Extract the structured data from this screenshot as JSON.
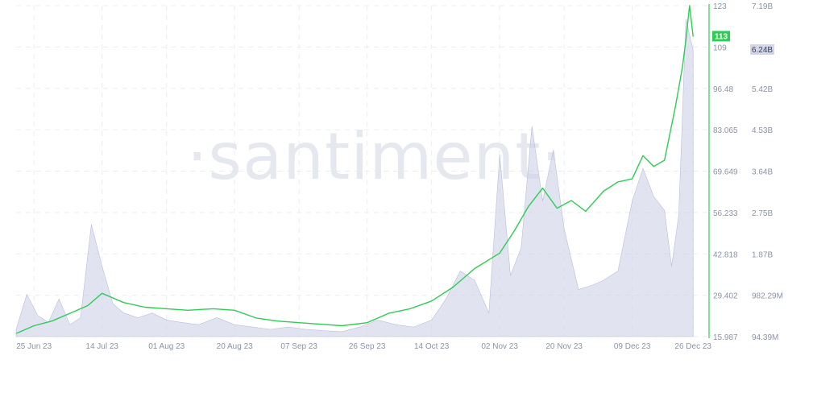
{
  "chart_data": {
    "type": "line",
    "title": "",
    "watermark": "·santiment·",
    "x_tick_labels": [
      "25 Jun 23",
      "14 Jul 23",
      "01 Aug 23",
      "20 Aug 23",
      "07 Sep 23",
      "26 Sep 23",
      "14 Oct 23",
      "02 Nov 23",
      "20 Nov 23",
      "09 Dec 23",
      "26 Dec 23"
    ],
    "price_axis": {
      "ticks": [
        "123",
        "109",
        "96.48",
        "83.065",
        "69.649",
        "56.233",
        "42.818",
        "29.402",
        "15.987"
      ],
      "range": [
        15.987,
        123
      ],
      "color": "#2ecc55",
      "current_value_label": "113"
    },
    "volume_axis": {
      "ticks": [
        "7.19B",
        "6.24B",
        "5.42B",
        "4.53B",
        "3.64B",
        "2.75B",
        "1.87B",
        "982.29M",
        "94.39M"
      ],
      "range_billions": [
        0.094,
        7.19
      ],
      "color": "#c9cde3",
      "current_value_label": "6.24B"
    },
    "series": [
      {
        "name": "",
        "kind": "line",
        "axis": "price",
        "x": [
          "2023-06-20",
          "2023-06-25",
          "2023-06-30",
          "2023-07-05",
          "2023-07-10",
          "2023-07-14",
          "2023-07-20",
          "2023-07-26",
          "2023-08-01",
          "2023-08-07",
          "2023-08-14",
          "2023-08-20",
          "2023-08-26",
          "2023-09-01",
          "2023-09-07",
          "2023-09-13",
          "2023-09-19",
          "2023-09-26",
          "2023-10-02",
          "2023-10-08",
          "2023-10-14",
          "2023-10-20",
          "2023-10-26",
          "2023-11-02",
          "2023-11-06",
          "2023-11-10",
          "2023-11-14",
          "2023-11-18",
          "2023-11-22",
          "2023-11-26",
          "2023-12-01",
          "2023-12-05",
          "2023-12-09",
          "2023-12-12",
          "2023-12-15",
          "2023-12-18",
          "2023-12-21",
          "2023-12-23",
          "2023-12-24",
          "2023-12-25",
          "2023-12-26"
        ],
        "y": [
          17.0,
          19.5,
          21.0,
          23.5,
          26.0,
          30.0,
          27.0,
          25.5,
          25.0,
          24.5,
          25.0,
          24.5,
          22.0,
          21.0,
          20.5,
          20.0,
          19.5,
          20.5,
          23.5,
          25.0,
          27.5,
          32.0,
          38.0,
          43.0,
          50.0,
          58.0,
          64.0,
          57.5,
          60.0,
          56.5,
          63.0,
          66.0,
          67.0,
          74.5,
          71.0,
          73.0,
          90.0,
          103.0,
          112.0,
          123.0,
          113.0
        ]
      },
      {
        "name": "",
        "kind": "area",
        "axis": "volume",
        "x": [
          "2023-06-20",
          "2023-06-23",
          "2023-06-26",
          "2023-06-29",
          "2023-07-02",
          "2023-07-05",
          "2023-07-08",
          "2023-07-11",
          "2023-07-14",
          "2023-07-17",
          "2023-07-20",
          "2023-07-24",
          "2023-07-28",
          "2023-08-01",
          "2023-08-05",
          "2023-08-10",
          "2023-08-15",
          "2023-08-20",
          "2023-08-25",
          "2023-08-30",
          "2023-09-04",
          "2023-09-09",
          "2023-09-14",
          "2023-09-19",
          "2023-09-24",
          "2023-09-29",
          "2023-10-04",
          "2023-10-09",
          "2023-10-14",
          "2023-10-18",
          "2023-10-22",
          "2023-10-26",
          "2023-10-30",
          "2023-11-02",
          "2023-11-05",
          "2023-11-08",
          "2023-11-11",
          "2023-11-14",
          "2023-11-17",
          "2023-11-20",
          "2023-11-24",
          "2023-11-28",
          "2023-12-01",
          "2023-12-05",
          "2023-12-09",
          "2023-12-12",
          "2023-12-15",
          "2023-12-18",
          "2023-12-20",
          "2023-12-22",
          "2023-12-24",
          "2023-12-26"
        ],
        "y": [
          0.25,
          1.0,
          0.55,
          0.4,
          0.9,
          0.35,
          0.5,
          2.5,
          1.6,
          0.8,
          0.6,
          0.5,
          0.6,
          0.45,
          0.4,
          0.35,
          0.5,
          0.35,
          0.3,
          0.25,
          0.3,
          0.25,
          0.22,
          0.2,
          0.3,
          0.45,
          0.35,
          0.3,
          0.45,
          0.9,
          1.5,
          1.3,
          0.6,
          4.0,
          1.4,
          2.0,
          4.6,
          3.0,
          4.1,
          2.4,
          1.1,
          1.2,
          1.3,
          1.5,
          3.0,
          3.7,
          3.1,
          2.8,
          1.6,
          2.7,
          6.9,
          6.24
        ]
      }
    ],
    "grid": true,
    "legend": "none"
  }
}
